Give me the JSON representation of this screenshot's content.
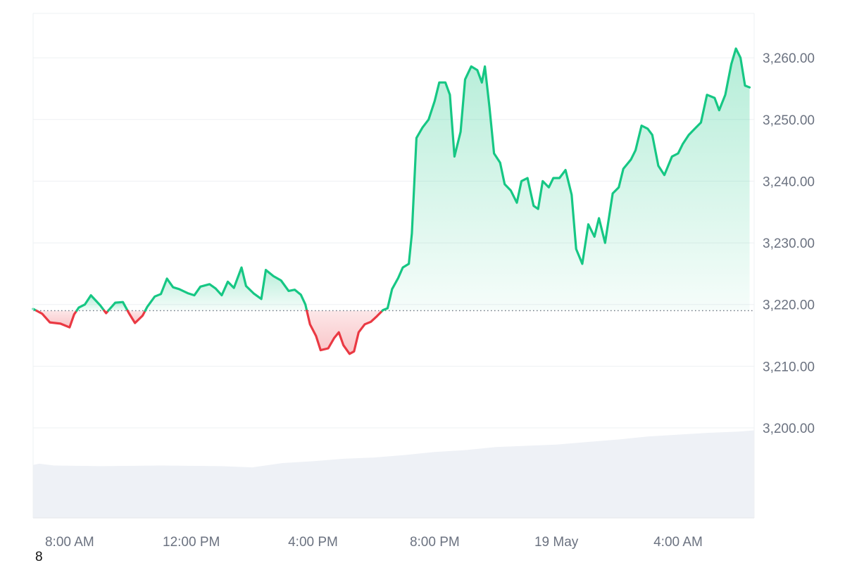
{
  "chart_data": {
    "type": "area",
    "title": "",
    "xlabel": "",
    "ylabel": "",
    "x_tick_labels": [
      "8:00 AM",
      "12:00 PM",
      "4:00 PM",
      "8:00 PM",
      "19 May",
      "4:00 AM"
    ],
    "x_tick_hours": [
      8,
      12,
      16,
      20,
      24,
      28
    ],
    "x_range_hours": [
      6.8,
      30.5
    ],
    "y_ticks": [
      3260,
      3250,
      3240,
      3230,
      3220,
      3210,
      3200
    ],
    "y_tick_labels": [
      "3,260.00",
      "3,250.00",
      "3,240.00",
      "3,230.00",
      "3,220.00",
      "3,210.00",
      "3,200.00"
    ],
    "ylim": [
      3185.4,
      3267.2
    ],
    "baseline": 3219.0,
    "grid": true,
    "colors": {
      "up_line": "#16c784",
      "down_line": "#ea3943",
      "up_fill": "#16c784",
      "down_fill": "#ea3943",
      "volume": "#eef1f6",
      "grid": "#eef0f3",
      "axis_text": "#6b7280"
    },
    "price": [
      [
        6.8,
        3219.3
      ],
      [
        7.1,
        3218.5
      ],
      [
        7.35,
        3217.1
      ],
      [
        7.7,
        3216.9
      ],
      [
        8.0,
        3216.3
      ],
      [
        8.15,
        3218.4
      ],
      [
        8.3,
        3219.5
      ],
      [
        8.5,
        3220.0
      ],
      [
        8.7,
        3221.5
      ],
      [
        9.0,
        3219.9
      ],
      [
        9.2,
        3218.6
      ],
      [
        9.5,
        3220.3
      ],
      [
        9.75,
        3220.4
      ],
      [
        9.95,
        3218.6
      ],
      [
        10.15,
        3217.0
      ],
      [
        10.4,
        3218.2
      ],
      [
        10.55,
        3219.6
      ],
      [
        10.8,
        3221.3
      ],
      [
        11.0,
        3221.7
      ],
      [
        11.2,
        3224.2
      ],
      [
        11.4,
        3222.8
      ],
      [
        11.6,
        3222.5
      ],
      [
        11.9,
        3221.8
      ],
      [
        12.1,
        3221.5
      ],
      [
        12.3,
        3222.9
      ],
      [
        12.6,
        3223.3
      ],
      [
        12.8,
        3222.6
      ],
      [
        13.0,
        3221.5
      ],
      [
        13.2,
        3223.7
      ],
      [
        13.4,
        3222.7
      ],
      [
        13.65,
        3226.0
      ],
      [
        13.8,
        3223.0
      ],
      [
        14.05,
        3221.8
      ],
      [
        14.3,
        3220.9
      ],
      [
        14.45,
        3225.6
      ],
      [
        14.7,
        3224.6
      ],
      [
        14.95,
        3223.9
      ],
      [
        15.2,
        3222.2
      ],
      [
        15.4,
        3222.4
      ],
      [
        15.6,
        3221.6
      ],
      [
        15.75,
        3220.0
      ],
      [
        15.9,
        3216.8
      ],
      [
        16.1,
        3214.9
      ],
      [
        16.25,
        3212.6
      ],
      [
        16.5,
        3212.9
      ],
      [
        16.7,
        3214.6
      ],
      [
        16.85,
        3215.5
      ],
      [
        17.0,
        3213.4
      ],
      [
        17.2,
        3212.0
      ],
      [
        17.35,
        3212.4
      ],
      [
        17.5,
        3215.5
      ],
      [
        17.7,
        3216.8
      ],
      [
        17.9,
        3217.2
      ],
      [
        18.1,
        3218.1
      ],
      [
        18.3,
        3219.1
      ],
      [
        18.45,
        3219.4
      ],
      [
        18.6,
        3222.5
      ],
      [
        18.8,
        3224.3
      ],
      [
        18.95,
        3226.0
      ],
      [
        19.15,
        3226.6
      ],
      [
        19.25,
        3231.5
      ],
      [
        19.4,
        3247.0
      ],
      [
        19.6,
        3248.7
      ],
      [
        19.8,
        3250.0
      ],
      [
        20.0,
        3253.0
      ],
      [
        20.15,
        3256.0
      ],
      [
        20.35,
        3256.0
      ],
      [
        20.5,
        3254.0
      ],
      [
        20.65,
        3244.0
      ],
      [
        20.85,
        3248.0
      ],
      [
        21.0,
        3256.5
      ],
      [
        21.2,
        3258.6
      ],
      [
        21.4,
        3258.0
      ],
      [
        21.55,
        3256.0
      ],
      [
        21.65,
        3258.6
      ],
      [
        21.8,
        3252.0
      ],
      [
        21.95,
        3244.5
      ],
      [
        22.15,
        3243.0
      ],
      [
        22.3,
        3239.5
      ],
      [
        22.5,
        3238.5
      ],
      [
        22.7,
        3236.5
      ],
      [
        22.85,
        3240.0
      ],
      [
        23.05,
        3240.5
      ],
      [
        23.25,
        3236.0
      ],
      [
        23.4,
        3235.5
      ],
      [
        23.55,
        3240.0
      ],
      [
        23.75,
        3239.0
      ],
      [
        23.9,
        3240.5
      ],
      [
        24.1,
        3240.5
      ],
      [
        24.3,
        3241.8
      ],
      [
        24.5,
        3237.8
      ],
      [
        24.65,
        3229.0
      ],
      [
        24.85,
        3226.6
      ],
      [
        25.05,
        3233.0
      ],
      [
        25.25,
        3231.0
      ],
      [
        25.4,
        3234.0
      ],
      [
        25.6,
        3230.0
      ],
      [
        25.85,
        3238.0
      ],
      [
        26.05,
        3239.0
      ],
      [
        26.2,
        3242.0
      ],
      [
        26.45,
        3243.5
      ],
      [
        26.6,
        3245.0
      ],
      [
        26.8,
        3249.0
      ],
      [
        27.0,
        3248.5
      ],
      [
        27.15,
        3247.5
      ],
      [
        27.35,
        3242.5
      ],
      [
        27.55,
        3241.0
      ],
      [
        27.8,
        3244.0
      ],
      [
        28.0,
        3244.5
      ],
      [
        28.15,
        3246.0
      ],
      [
        28.35,
        3247.5
      ],
      [
        28.55,
        3248.5
      ],
      [
        28.75,
        3249.5
      ],
      [
        28.95,
        3254.0
      ],
      [
        29.2,
        3253.5
      ],
      [
        29.35,
        3251.5
      ],
      [
        29.55,
        3254.0
      ],
      [
        29.75,
        3259.0
      ],
      [
        29.9,
        3261.5
      ],
      [
        30.05,
        3260.0
      ],
      [
        30.2,
        3255.5
      ],
      [
        30.35,
        3255.2
      ]
    ],
    "volume": [
      [
        6.8,
        3194.0
      ],
      [
        7.0,
        3194.2
      ],
      [
        7.5,
        3193.9
      ],
      [
        9.0,
        3193.8
      ],
      [
        11.0,
        3193.9
      ],
      [
        13.0,
        3193.8
      ],
      [
        14.0,
        3193.6
      ],
      [
        15.0,
        3194.3
      ],
      [
        16.0,
        3194.6
      ],
      [
        17.0,
        3195.0
      ],
      [
        18.0,
        3195.2
      ],
      [
        19.0,
        3195.6
      ],
      [
        20.0,
        3196.1
      ],
      [
        21.0,
        3196.4
      ],
      [
        22.0,
        3196.9
      ],
      [
        23.0,
        3197.1
      ],
      [
        24.0,
        3197.3
      ],
      [
        25.0,
        3197.7
      ],
      [
        26.0,
        3198.1
      ],
      [
        27.0,
        3198.6
      ],
      [
        28.0,
        3198.9
      ],
      [
        29.0,
        3199.2
      ],
      [
        30.0,
        3199.4
      ],
      [
        30.5,
        3199.6
      ]
    ]
  },
  "footer": {
    "corner_label": "8"
  }
}
